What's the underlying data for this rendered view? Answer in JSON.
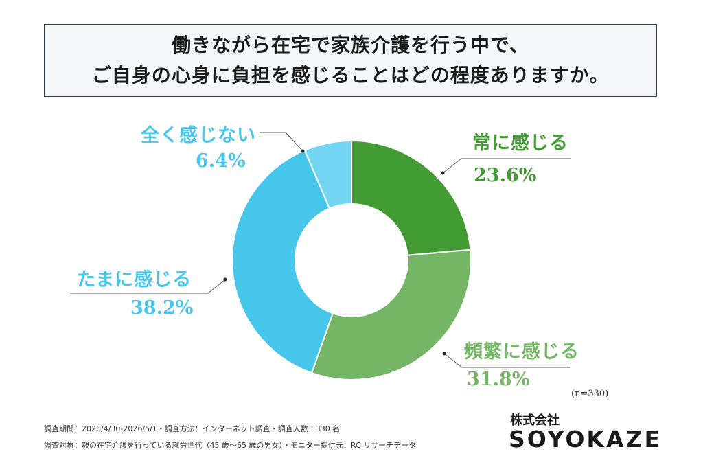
{
  "title": {
    "line1": "働きながら在宅で家族介護を行う中で、",
    "line2": "ご自身の心身に負担を感じることはどの程度ありますか。"
  },
  "chart_data": {
    "type": "pie",
    "donut": true,
    "categories": [
      "常に感じる",
      "頻繁に感じる",
      "たまに感じる",
      "全く感じない"
    ],
    "values": [
      23.6,
      31.8,
      38.2,
      6.4
    ],
    "value_labels": [
      "23.6%",
      "31.8%",
      "38.2%",
      "6.4%"
    ],
    "colors": [
      "#439b34",
      "#74b566",
      "#47c6eb",
      "#72d6f2"
    ],
    "label_colors": [
      "#439b34",
      "#74b566",
      "#47c6eb",
      "#47c6eb"
    ],
    "start": "12 o'clock, clockwise",
    "n_label": "(n=330)"
  },
  "footer": {
    "line1": "調査期間：2026/4/30-2026/5/1・調査方法：インターネット調査・調査人数：330 名",
    "line2": "調査対象：親の在宅介護を行っている就労世代（45 歳～65 歳の男女）・モニター提供元：RC リサーチデータ"
  },
  "brand": {
    "sub": "株式会社",
    "name": "SOYOKAZE"
  }
}
